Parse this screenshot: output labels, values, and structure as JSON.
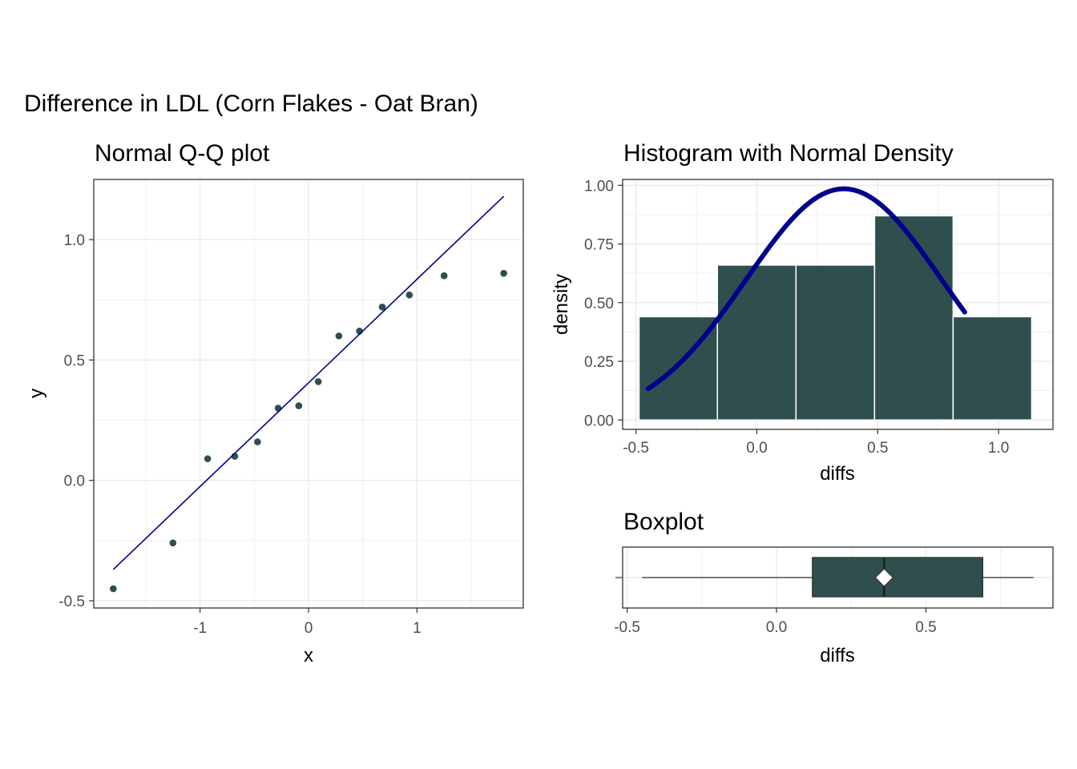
{
  "figure": {
    "title": "Difference in LDL (Corn Flakes - Oat Bran)"
  },
  "colors": {
    "fill": "#2f4f4f",
    "qq_line": "#00008b",
    "density_line": "#00008b",
    "grid": "#ebebeb",
    "panel_border": "#333333",
    "tick_text": "#4d4d4d"
  },
  "chart_data": [
    {
      "type": "scatter",
      "title": "Normal Q-Q plot",
      "xlabel": "x",
      "ylabel": "y",
      "xlim": [
        -1.98,
        1.98
      ],
      "ylim": [
        -0.53,
        1.25
      ],
      "x_ticks": [
        -1,
        0,
        1
      ],
      "x_tick_labels": [
        "-1",
        "0",
        "1"
      ],
      "y_ticks": [
        -0.5,
        0.0,
        0.5,
        1.0
      ],
      "y_tick_labels": [
        "-0.5",
        "0.0",
        "0.5",
        "1.0"
      ],
      "grid": true,
      "points": [
        {
          "x": -1.8,
          "y": -0.45
        },
        {
          "x": -1.25,
          "y": -0.26
        },
        {
          "x": -0.93,
          "y": 0.09
        },
        {
          "x": -0.68,
          "y": 0.1
        },
        {
          "x": -0.47,
          "y": 0.16
        },
        {
          "x": -0.28,
          "y": 0.3
        },
        {
          "x": -0.09,
          "y": 0.31
        },
        {
          "x": 0.09,
          "y": 0.41
        },
        {
          "x": 0.28,
          "y": 0.6
        },
        {
          "x": 0.47,
          "y": 0.62
        },
        {
          "x": 0.68,
          "y": 0.72
        },
        {
          "x": 0.93,
          "y": 0.77
        },
        {
          "x": 1.25,
          "y": 0.85
        },
        {
          "x": 1.8,
          "y": 0.86
        }
      ],
      "reference_line": {
        "x": [
          -1.8,
          1.8
        ],
        "y": [
          -0.37,
          1.18
        ]
      }
    },
    {
      "type": "bar",
      "title": "Histogram with Normal Density",
      "xlabel": "diffs",
      "ylabel": "density",
      "xlim": [
        -0.555,
        1.225
      ],
      "ylim": [
        -0.04,
        1.025
      ],
      "x_ticks": [
        -0.5,
        0.0,
        0.5,
        1.0
      ],
      "x_tick_labels": [
        "-0.5",
        "0.0",
        "0.5",
        "1.0"
      ],
      "y_ticks": [
        0.0,
        0.25,
        0.5,
        0.75,
        1.0
      ],
      "y_tick_labels": [
        "0.00",
        "0.25",
        "0.50",
        "0.75",
        "1.00"
      ],
      "grid": true,
      "bins": [
        {
          "x0": -0.487,
          "x1": -0.163,
          "density": 0.44
        },
        {
          "x0": -0.163,
          "x1": 0.162,
          "density": 0.66
        },
        {
          "x0": 0.162,
          "x1": 0.487,
          "density": 0.66
        },
        {
          "x0": 0.487,
          "x1": 0.812,
          "density": 0.87
        },
        {
          "x0": 0.812,
          "x1": 1.137,
          "density": 0.44
        }
      ],
      "density_curve": {
        "mean": 0.36,
        "sd": 0.405,
        "x_range": [
          -0.45,
          0.86
        ]
      }
    },
    {
      "type": "box",
      "title": "Boxplot",
      "xlabel": "diffs",
      "xlim": [
        -0.515,
        0.925
      ],
      "x_ticks": [
        -0.5,
        0.0,
        0.5
      ],
      "x_tick_labels": [
        "-0.5",
        "0.0",
        "0.5"
      ],
      "grid": true,
      "whisker_low": -0.45,
      "q1": 0.12,
      "median": 0.36,
      "q3": 0.69,
      "whisker_high": 0.86,
      "mean": 0.36
    }
  ]
}
